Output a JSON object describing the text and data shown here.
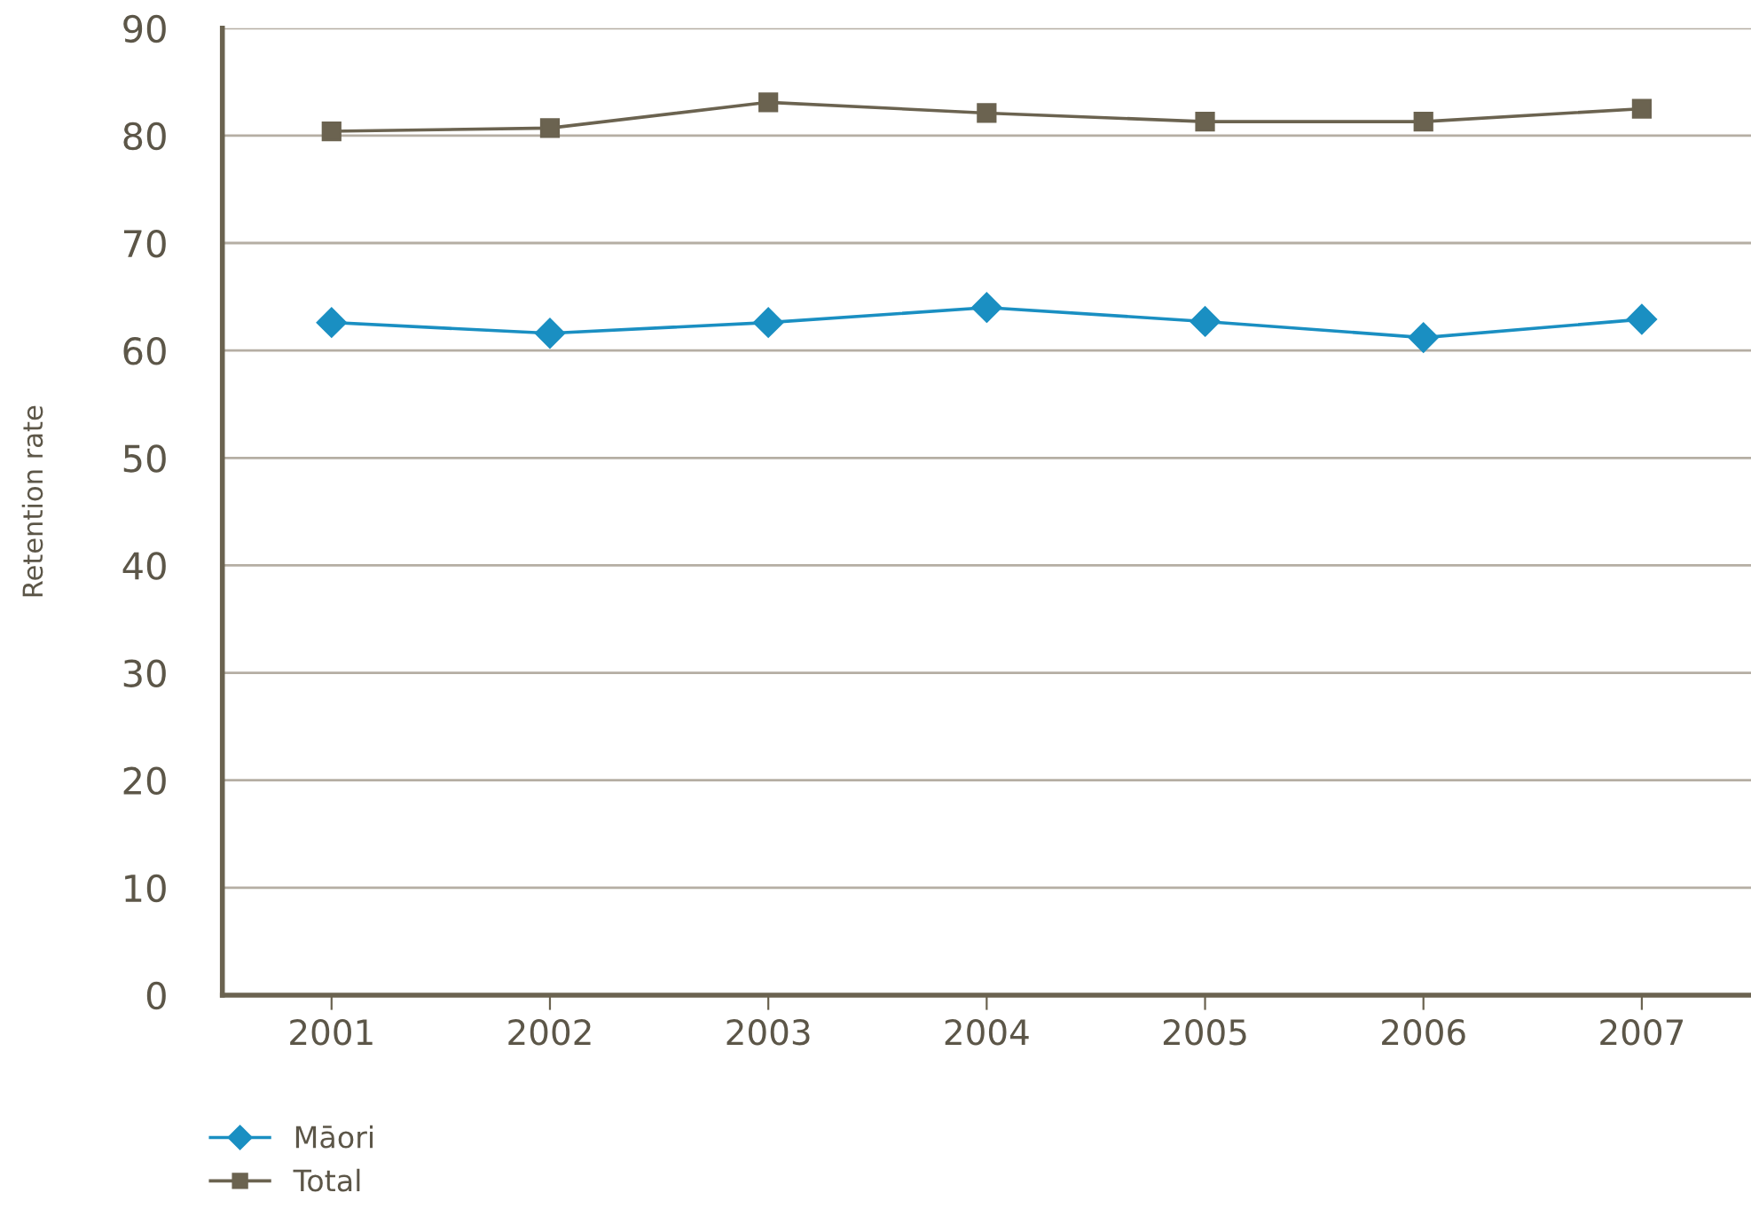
{
  "chart_data": {
    "type": "line",
    "ylabel": "Retention rate",
    "categories": [
      "2001",
      "2002",
      "2003",
      "2004",
      "2005",
      "2006",
      "2007"
    ],
    "series": [
      {
        "name": "Māori",
        "color": "#1a8fc2",
        "marker": "diamond",
        "values": [
          62.6,
          61.6,
          62.6,
          64.0,
          62.7,
          61.2,
          62.9
        ]
      },
      {
        "name": "Total",
        "color": "#6b6350",
        "marker": "square",
        "values": [
          80.4,
          80.7,
          83.1,
          82.1,
          81.3,
          81.3,
          82.5
        ]
      }
    ],
    "ylim": [
      0,
      90
    ],
    "yticks": [
      0,
      10,
      20,
      30,
      40,
      50,
      60,
      70,
      80,
      90
    ],
    "grid": "y",
    "legend": "bottom left"
  }
}
